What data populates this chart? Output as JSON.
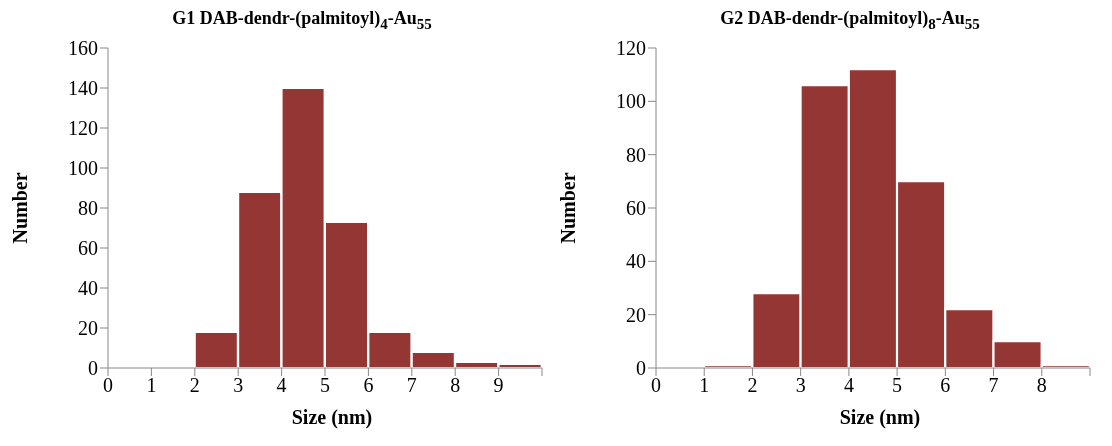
{
  "chart_data": [
    {
      "type": "histogram",
      "title": "G1 DAB-dendr-(palmitoyl)$_{4}$-Au$_{55}$",
      "xlabel": "Size (nm)",
      "ylabel": "Number",
      "color": "#943634",
      "bins": [
        0,
        1,
        2,
        3,
        4,
        5,
        6,
        7,
        8,
        9,
        10
      ],
      "values": [
        0,
        0,
        18,
        88,
        140,
        73,
        18,
        8,
        3,
        2
      ],
      "xlim": [
        0,
        10
      ],
      "xticks": [
        0,
        1,
        2,
        3,
        4,
        5,
        6,
        7,
        8,
        9,
        {
          "value": 10,
          "label": null
        }
      ],
      "ylim": [
        0,
        160
      ],
      "yticks": [
        0,
        20,
        40,
        60,
        80,
        100,
        120,
        140,
        160
      ],
      "grid": false,
      "legend": false
    },
    {
      "type": "histogram",
      "title": "G2 DAB-dendr-(palmitoyl)$_{8}$-Au$_{55}$",
      "xlabel": "Size (nm)",
      "ylabel": "Number",
      "color": "#943634",
      "bins": [
        0,
        1,
        2,
        3,
        4,
        5,
        6,
        7,
        8,
        9
      ],
      "values": [
        0,
        1,
        28,
        106,
        112,
        70,
        22,
        10,
        1
      ],
      "xlim": [
        0,
        9
      ],
      "xticks": [
        0,
        1,
        2,
        3,
        4,
        5,
        6,
        7,
        8,
        {
          "value": 9,
          "label": null
        }
      ],
      "ylim": [
        0,
        120
      ],
      "yticks": [
        0,
        20,
        40,
        60,
        80,
        100,
        120
      ],
      "grid": false,
      "legend": false
    }
  ]
}
